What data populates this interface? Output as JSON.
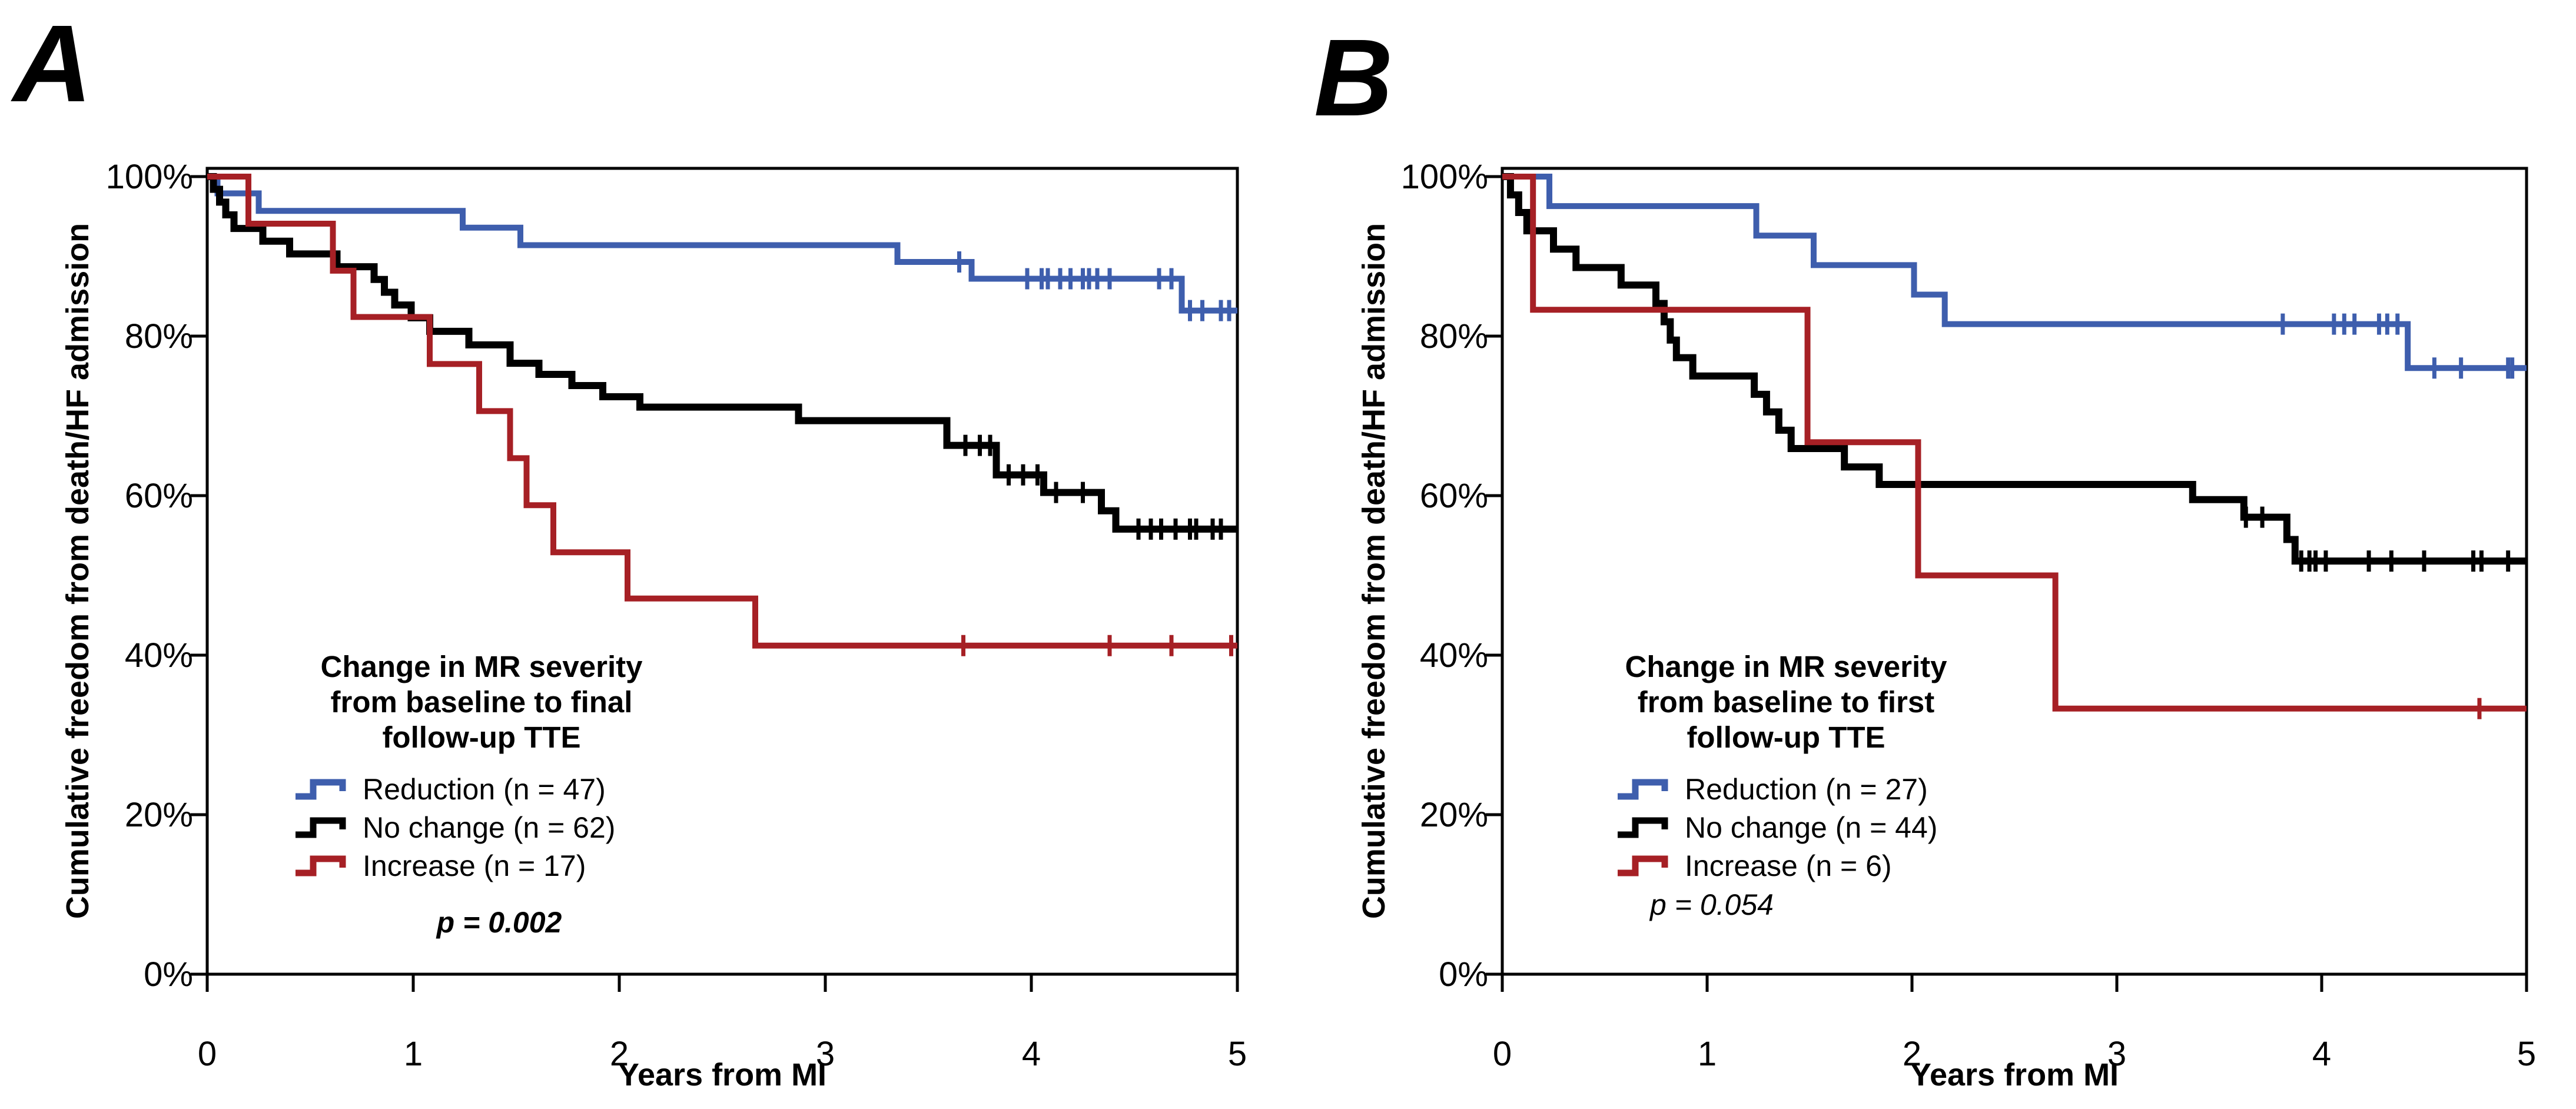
{
  "chart_data": [
    {
      "type": "line",
      "subtype": "kaplan_meier_step",
      "panel": "A",
      "legend_title_lines": [
        "Change in MR severity",
        "from baseline to final",
        "follow-up TTE"
      ],
      "p_value": "p = 0.002",
      "xlabel": "Years from MI",
      "ylabel": "Cumulative freedom from death/HF admission",
      "xlim": [
        0,
        5
      ],
      "ylim": [
        0,
        100
      ],
      "grid": false,
      "legend_position": "lower-left-inside",
      "x_ticks": [
        {
          "v": 0,
          "label": "0"
        },
        {
          "v": 1,
          "label": "1"
        },
        {
          "v": 2,
          "label": "2"
        },
        {
          "v": 3,
          "label": "3"
        },
        {
          "v": 4,
          "label": "4"
        },
        {
          "v": 5,
          "label": "5"
        }
      ],
      "y_ticks": [
        {
          "v": 100,
          "label": "100%"
        },
        {
          "v": 80,
          "label": "80%"
        },
        {
          "v": 60,
          "label": "60%"
        },
        {
          "v": 40,
          "label": "40%"
        },
        {
          "v": 20,
          "label": "20%"
        },
        {
          "v": 0,
          "label": "0%"
        }
      ],
      "series": [
        {
          "name": "Reduction (n = 47)",
          "key": "reduction",
          "color": "#3E5EAD",
          "points": [
            [
              0,
              100
            ],
            [
              0.05,
              97.9
            ],
            [
              0.25,
              95.7
            ],
            [
              1.24,
              93.6
            ],
            [
              1.52,
              91.4
            ],
            [
              3.35,
              89.3
            ],
            [
              3.71,
              87.2
            ],
            [
              4.73,
              83.2
            ],
            [
              5,
              83.2
            ]
          ],
          "censors": [
            [
              3.65,
              89.3
            ],
            [
              3.98,
              87.2
            ],
            [
              4.05,
              87.2
            ],
            [
              4.08,
              87.2
            ],
            [
              4.14,
              87.2
            ],
            [
              4.19,
              87.2
            ],
            [
              4.25,
              87.2
            ],
            [
              4.28,
              87.2
            ],
            [
              4.32,
              87.2
            ],
            [
              4.38,
              87.2
            ],
            [
              4.62,
              87.2
            ],
            [
              4.68,
              87.2
            ],
            [
              4.77,
              83.2
            ],
            [
              4.83,
              83.2
            ],
            [
              4.92,
              83.2
            ],
            [
              4.96,
              83.2
            ]
          ]
        },
        {
          "name": "No change (n = 62)",
          "key": "no_change",
          "color": "#000000",
          "points": [
            [
              0,
              100
            ],
            [
              0.03,
              98.4
            ],
            [
              0.06,
              96.8
            ],
            [
              0.09,
              95.2
            ],
            [
              0.13,
              93.5
            ],
            [
              0.27,
              91.9
            ],
            [
              0.4,
              90.3
            ],
            [
              0.63,
              88.7
            ],
            [
              0.81,
              87.1
            ],
            [
              0.86,
              85.5
            ],
            [
              0.91,
              83.9
            ],
            [
              0.99,
              82.3
            ],
            [
              1.08,
              80.6
            ],
            [
              1.27,
              78.9
            ],
            [
              1.47,
              76.6
            ],
            [
              1.61,
              75.2
            ],
            [
              1.77,
              73.8
            ],
            [
              1.92,
              72.4
            ],
            [
              2.1,
              71.1
            ],
            [
              2.87,
              69.4
            ],
            [
              3.59,
              66.3
            ],
            [
              3.83,
              62.6
            ],
            [
              4.06,
              60.4
            ],
            [
              4.34,
              58.1
            ],
            [
              4.41,
              55.8
            ],
            [
              5,
              55.8
            ]
          ],
          "censors": [
            [
              3.68,
              66.3
            ],
            [
              3.75,
              66.3
            ],
            [
              3.8,
              66.3
            ],
            [
              3.89,
              62.6
            ],
            [
              3.96,
              62.6
            ],
            [
              4.03,
              62.6
            ],
            [
              4.12,
              60.4
            ],
            [
              4.25,
              60.4
            ],
            [
              4.52,
              55.8
            ],
            [
              4.58,
              55.8
            ],
            [
              4.63,
              55.8
            ],
            [
              4.7,
              55.8
            ],
            [
              4.77,
              55.8
            ],
            [
              4.8,
              55.8
            ],
            [
              4.88,
              55.8
            ],
            [
              4.92,
              55.8
            ]
          ]
        },
        {
          "name": "Increase (n = 17)",
          "key": "increase",
          "color": "#A62025",
          "points": [
            [
              0,
              100
            ],
            [
              0.2,
              94.1
            ],
            [
              0.61,
              88.2
            ],
            [
              0.71,
              82.4
            ],
            [
              1.08,
              76.5
            ],
            [
              1.32,
              70.6
            ],
            [
              1.47,
              64.7
            ],
            [
              1.55,
              58.8
            ],
            [
              1.68,
              52.9
            ],
            [
              2.04,
              47.1
            ],
            [
              2.66,
              41.2
            ],
            [
              5,
              41.2
            ]
          ],
          "censors": [
            [
              3.67,
              41.2
            ],
            [
              4.38,
              41.2
            ],
            [
              4.68,
              41.2
            ],
            [
              4.97,
              41.2
            ]
          ]
        }
      ]
    },
    {
      "type": "line",
      "subtype": "kaplan_meier_step",
      "panel": "B",
      "legend_title_lines": [
        "Change in MR severity",
        "from baseline to first",
        "follow-up TTE"
      ],
      "p_value": "p = 0.054",
      "xlabel": "Years from MI",
      "ylabel": "Cumulative freedom from death/HF admission",
      "xlim": [
        0,
        5
      ],
      "ylim": [
        0,
        100
      ],
      "grid": false,
      "legend_position": "lower-left-inside",
      "x_ticks": [
        {
          "v": 0,
          "label": "0"
        },
        {
          "v": 1,
          "label": "1"
        },
        {
          "v": 2,
          "label": "2"
        },
        {
          "v": 3,
          "label": "3"
        },
        {
          "v": 4,
          "label": "4"
        },
        {
          "v": 5,
          "label": "5"
        }
      ],
      "y_ticks": [
        {
          "v": 100,
          "label": "100%"
        },
        {
          "v": 80,
          "label": "80%"
        },
        {
          "v": 60,
          "label": "60%"
        },
        {
          "v": 40,
          "label": "40%"
        },
        {
          "v": 20,
          "label": "20%"
        },
        {
          "v": 0,
          "label": "0%"
        }
      ],
      "series": [
        {
          "name": "Reduction (n = 27)",
          "key": "reduction",
          "color": "#3E5EAD",
          "points": [
            [
              0,
              100
            ],
            [
              0.23,
              96.3
            ],
            [
              1.24,
              92.6
            ],
            [
              1.52,
              88.9
            ],
            [
              2.01,
              85.2
            ],
            [
              2.16,
              81.5
            ],
            [
              4.42,
              76.0
            ],
            [
              5,
              76.0
            ]
          ],
          "censors": [
            [
              3.81,
              81.5
            ],
            [
              4.06,
              81.5
            ],
            [
              4.11,
              81.5
            ],
            [
              4.16,
              81.5
            ],
            [
              4.28,
              81.5
            ],
            [
              4.32,
              81.5
            ],
            [
              4.37,
              81.5
            ],
            [
              4.55,
              76.0
            ],
            [
              4.68,
              76.0
            ],
            [
              4.91,
              76.0
            ],
            [
              4.93,
              76.0
            ]
          ]
        },
        {
          "name": "No change (n = 44)",
          "key": "no_change",
          "color": "#000000",
          "points": [
            [
              0,
              100
            ],
            [
              0.04,
              97.7
            ],
            [
              0.08,
              95.5
            ],
            [
              0.12,
              93.2
            ],
            [
              0.25,
              90.9
            ],
            [
              0.36,
              88.6
            ],
            [
              0.58,
              86.4
            ],
            [
              0.75,
              84.1
            ],
            [
              0.79,
              81.8
            ],
            [
              0.82,
              79.5
            ],
            [
              0.85,
              77.3
            ],
            [
              0.93,
              75.0
            ],
            [
              1.23,
              72.7
            ],
            [
              1.29,
              70.5
            ],
            [
              1.35,
              68.2
            ],
            [
              1.41,
              65.9
            ],
            [
              1.67,
              63.6
            ],
            [
              1.84,
              61.4
            ],
            [
              3.37,
              59.5
            ],
            [
              3.62,
              57.3
            ],
            [
              3.83,
              54.5
            ],
            [
              3.87,
              51.8
            ],
            [
              5,
              51.8
            ]
          ],
          "censors": [
            [
              3.63,
              57.3
            ],
            [
              3.71,
              57.3
            ],
            [
              3.9,
              51.8
            ],
            [
              3.94,
              51.8
            ],
            [
              3.97,
              51.8
            ],
            [
              4.02,
              51.8
            ],
            [
              4.23,
              51.8
            ],
            [
              4.34,
              51.8
            ],
            [
              4.5,
              51.8
            ],
            [
              4.74,
              51.8
            ],
            [
              4.78,
              51.8
            ],
            [
              4.91,
              51.8
            ]
          ]
        },
        {
          "name": "Increase (n = 6)",
          "key": "increase",
          "color": "#A62025",
          "points": [
            [
              0,
              100
            ],
            [
              0.15,
              83.3
            ],
            [
              1.49,
              66.7
            ],
            [
              2.03,
              50.0
            ],
            [
              2.7,
              33.3
            ],
            [
              5,
              33.3
            ]
          ],
          "censors": [
            [
              4.77,
              33.3
            ]
          ]
        }
      ]
    }
  ]
}
